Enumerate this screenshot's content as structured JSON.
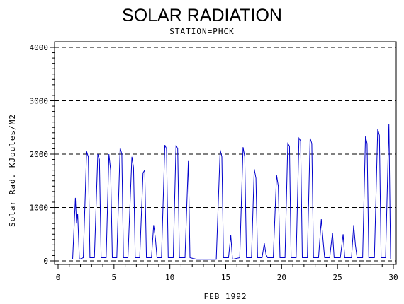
{
  "chart_data": {
    "type": "line",
    "title": "SOLAR RADIATION",
    "subtitle": "STATION=PHCK",
    "xlabel": "FEB 1992",
    "ylabel": "Solar Rad. KJoules/M2",
    "xlim": [
      0,
      30
    ],
    "ylim": [
      0,
      4000
    ],
    "x_ticks": [
      0,
      5,
      10,
      15,
      20,
      25,
      30
    ],
    "y_ticks": [
      0,
      1000,
      2000,
      3000,
      4000
    ],
    "grid": "horizontal-dashed",
    "line_color": "#0000cc",
    "series": [
      {
        "values": [
          [
            1.3,
            30
          ],
          [
            1.55,
            1180
          ],
          [
            1.65,
            700
          ],
          [
            1.75,
            880
          ],
          [
            1.9,
            30
          ],
          [
            2.25,
            60
          ],
          [
            2.55,
            2050
          ],
          [
            2.7,
            1950
          ],
          [
            2.85,
            60
          ],
          [
            3.25,
            60
          ],
          [
            3.55,
            2000
          ],
          [
            3.7,
            1900
          ],
          [
            3.85,
            60
          ],
          [
            4.3,
            60
          ],
          [
            4.55,
            2000
          ],
          [
            4.7,
            1700
          ],
          [
            4.85,
            60
          ],
          [
            5.25,
            60
          ],
          [
            5.55,
            2120
          ],
          [
            5.7,
            2000
          ],
          [
            5.85,
            60
          ],
          [
            6.25,
            60
          ],
          [
            6.6,
            1950
          ],
          [
            6.75,
            1750
          ],
          [
            6.9,
            60
          ],
          [
            7.3,
            60
          ],
          [
            7.6,
            1650
          ],
          [
            7.75,
            1700
          ],
          [
            7.9,
            60
          ],
          [
            8.35,
            60
          ],
          [
            8.55,
            670
          ],
          [
            8.7,
            430
          ],
          [
            8.85,
            60
          ],
          [
            9.25,
            60
          ],
          [
            9.55,
            2170
          ],
          [
            9.7,
            2100
          ],
          [
            9.85,
            60
          ],
          [
            10.3,
            60
          ],
          [
            10.55,
            2170
          ],
          [
            10.7,
            2100
          ],
          [
            10.85,
            60
          ],
          [
            11.35,
            60
          ],
          [
            11.65,
            1870
          ],
          [
            11.8,
            60
          ],
          [
            12.4,
            30
          ],
          [
            14.15,
            30
          ],
          [
            14.5,
            2080
          ],
          [
            14.65,
            1950
          ],
          [
            14.8,
            60
          ],
          [
            15.25,
            60
          ],
          [
            15.45,
            480
          ],
          [
            15.6,
            30
          ],
          [
            16.25,
            60
          ],
          [
            16.55,
            2130
          ],
          [
            16.7,
            1950
          ],
          [
            16.85,
            60
          ],
          [
            17.3,
            60
          ],
          [
            17.55,
            1720
          ],
          [
            17.7,
            1550
          ],
          [
            17.85,
            60
          ],
          [
            18.25,
            60
          ],
          [
            18.45,
            330
          ],
          [
            18.6,
            120
          ],
          [
            18.75,
            60
          ],
          [
            19.25,
            60
          ],
          [
            19.55,
            1610
          ],
          [
            19.7,
            1400
          ],
          [
            19.85,
            60
          ],
          [
            20.3,
            60
          ],
          [
            20.55,
            2200
          ],
          [
            20.7,
            2150
          ],
          [
            20.85,
            60
          ],
          [
            21.3,
            60
          ],
          [
            21.55,
            2300
          ],
          [
            21.7,
            2250
          ],
          [
            21.85,
            60
          ],
          [
            22.3,
            60
          ],
          [
            22.55,
            2300
          ],
          [
            22.7,
            2200
          ],
          [
            22.85,
            60
          ],
          [
            23.3,
            60
          ],
          [
            23.55,
            780
          ],
          [
            23.7,
            400
          ],
          [
            23.85,
            60
          ],
          [
            24.3,
            60
          ],
          [
            24.55,
            530
          ],
          [
            24.7,
            60
          ],
          [
            25.25,
            60
          ],
          [
            25.5,
            500
          ],
          [
            25.65,
            60
          ],
          [
            26.25,
            60
          ],
          [
            26.45,
            670
          ],
          [
            26.6,
            300
          ],
          [
            26.75,
            60
          ],
          [
            27.25,
            60
          ],
          [
            27.5,
            2330
          ],
          [
            27.65,
            2200
          ],
          [
            27.8,
            60
          ],
          [
            28.3,
            60
          ],
          [
            28.6,
            2470
          ],
          [
            28.75,
            2350
          ],
          [
            28.9,
            60
          ],
          [
            29.3,
            60
          ],
          [
            29.6,
            2570
          ],
          [
            29.75,
            30
          ]
        ]
      }
    ]
  }
}
